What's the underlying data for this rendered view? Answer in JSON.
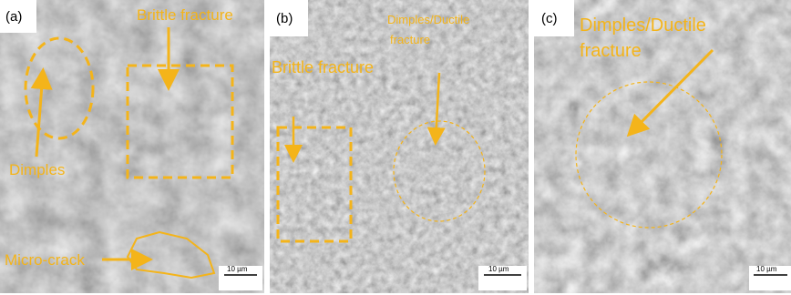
{
  "panels": [
    {
      "label": "(a)",
      "annotations": [
        "Brittle fracture",
        "Dimples",
        "Micro-crack"
      ],
      "scale_bar": "10 µm"
    },
    {
      "label": "(b)",
      "annotations": [
        "Dimples/Ductile",
        "fracture",
        "Brittle fracture"
      ],
      "scale_bar": "10 µm"
    },
    {
      "label": "(c)",
      "annotations": [
        "Dimples/Ductile",
        "fracture"
      ],
      "scale_bar": "10 µm"
    }
  ]
}
